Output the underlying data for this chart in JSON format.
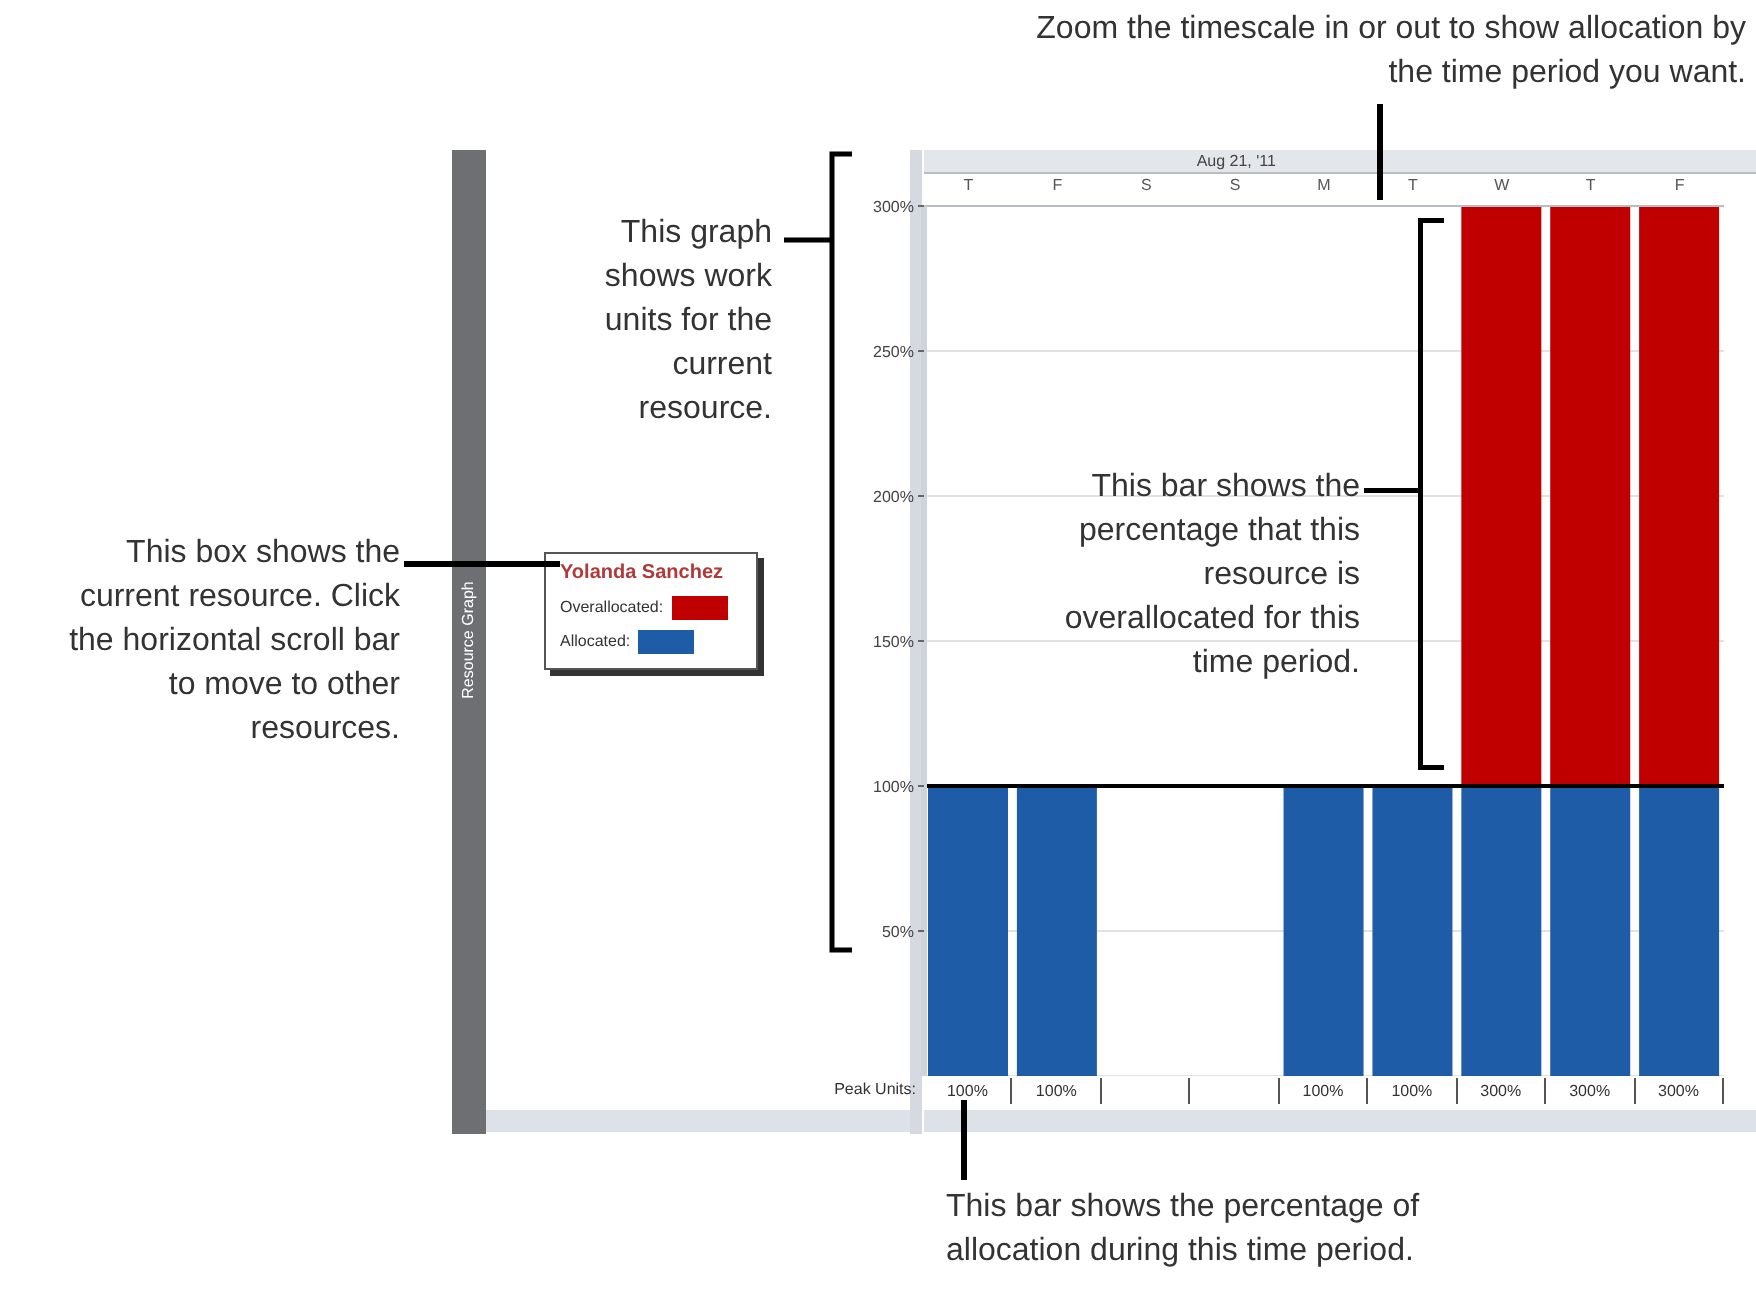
{
  "chart_data": {
    "type": "bar",
    "stacked": true,
    "xlabel": "Aug 21, '11",
    "legend_title": "Yolanda Sanchez",
    "legend": "left",
    "categories": [
      "T",
      "F",
      "S",
      "S",
      "M",
      "T",
      "W",
      "T",
      "F"
    ],
    "series": [
      {
        "name": "Allocated:",
        "color": "#1f5ca8",
        "values": [
          100,
          100,
          0,
          0,
          100,
          100,
          100,
          100,
          100
        ]
      },
      {
        "name": "Overallocated:",
        "color": "#c00000",
        "values": [
          0,
          0,
          0,
          0,
          0,
          0,
          200,
          200,
          200
        ]
      }
    ],
    "ylim": [
      0,
      300
    ],
    "yticks": [
      {
        "value": 50,
        "label": "50%"
      },
      {
        "value": 100,
        "label": "100%"
      },
      {
        "value": 150,
        "label": "150%"
      },
      {
        "value": 200,
        "label": "200%"
      },
      {
        "value": 250,
        "label": "250%"
      },
      {
        "value": 300,
        "label": "300%"
      }
    ],
    "grid": "y",
    "ref_lines": [
      {
        "axis": "y",
        "value": 100,
        "color": "#000000"
      }
    ],
    "totals": [
      "100%",
      "100%",
      null,
      null,
      "100%",
      "100%",
      "300%",
      "300%",
      "300%"
    ],
    "annotations": [
      "Zoom the timescale in or out to show allocation by the time period you want.",
      "This graph shows work units for the current resource.",
      "This bar shows the percentage that this resource is overallocated for this time period.",
      "This box shows the current resource. Click the horizontal scroll bar to move to other resources.",
      "This bar shows the percentage of allocation during this time period.",
      "Resource Graph",
      "Peak Units:"
    ]
  }
}
